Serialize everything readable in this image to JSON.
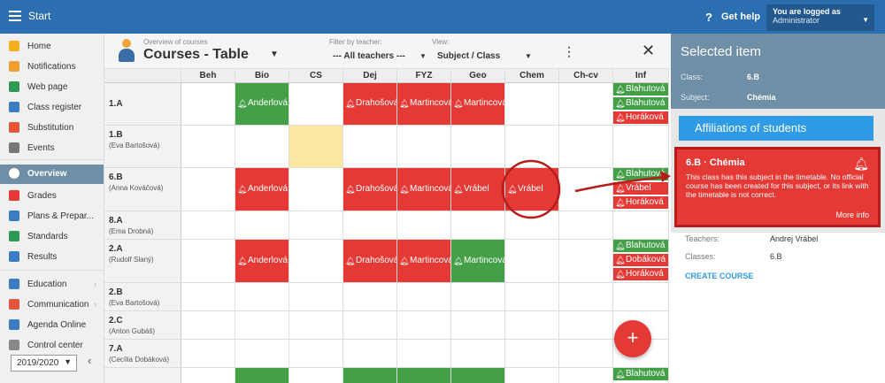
{
  "topbar": {
    "start_label": "Start",
    "help_label": "Get help",
    "help_icon": "?",
    "user_line1": "You are logged as",
    "user_line2": "Administrator"
  },
  "sidebar": {
    "items": [
      {
        "label": "Home",
        "icon": "star-icon",
        "color": "#f2b01e"
      },
      {
        "label": "Notifications",
        "icon": "envelope-icon",
        "color": "#f0a030"
      },
      {
        "label": "Web page",
        "icon": "house-icon",
        "color": "#2e9a55"
      },
      {
        "label": "Class register",
        "icon": "book-icon",
        "color": "#3b7dc4"
      },
      {
        "label": "Substitution",
        "icon": "person-icon",
        "color": "#e2553a"
      },
      {
        "label": "Events",
        "icon": "calendar-icon",
        "color": "#777"
      },
      {
        "label": "Overview",
        "icon": "check-icon",
        "color": "#ffffff"
      },
      {
        "label": "Grades",
        "icon": "grade-icon",
        "color": "#e53935"
      },
      {
        "label": "Plans & Prepar...",
        "icon": "plans-icon",
        "color": "#3b7dc4"
      },
      {
        "label": "Standards",
        "icon": "shield-icon",
        "color": "#2e9a55"
      },
      {
        "label": "Results",
        "icon": "bar-chart-icon",
        "color": "#3b7dc4"
      },
      {
        "label": "Education",
        "icon": "education-icon",
        "color": "#3b7dc4"
      },
      {
        "label": "Communication",
        "icon": "chat-icon",
        "color": "#e2553a"
      },
      {
        "label": "Agenda Online",
        "icon": "pen-icon",
        "color": "#3b7dc4"
      },
      {
        "label": "Control center",
        "icon": "gear-icon",
        "color": "#888"
      }
    ],
    "year": "2019/2020"
  },
  "header": {
    "subtitle": "Overview of courses",
    "title": "Courses - Table",
    "teacher_filter_label": "Filter by teacher:",
    "teacher_filter_value": "--- All teachers ---",
    "view_label": "View:",
    "view_value": "Subject / Class"
  },
  "table": {
    "columns": [
      "Beh",
      "Bio",
      "CS",
      "Dej",
      "FYZ",
      "Geo",
      "Chem",
      "Ch-cv",
      "Inf"
    ],
    "rows": [
      {
        "cls": "1.A",
        "teacher": "",
        "cells": [
          "",
          {
            "c": "green",
            "t": "Anderlová"
          },
          "",
          {
            "c": "red",
            "t": "Drahošová"
          },
          {
            "c": "red",
            "t": "Martincová"
          },
          {
            "c": "red",
            "t": "Martincová"
          },
          "",
          "",
          {
            "c": "stack",
            "items": [
              {
                "c": "green",
                "t": "Blahutová"
              },
              {
                "c": "green",
                "t": "Blahutová"
              },
              {
                "c": "red",
                "t": "Horáková"
              }
            ]
          }
        ]
      },
      {
        "cls": "1.B",
        "teacher": "(Eva Bartošová)",
        "cells": [
          "",
          "",
          {
            "c": "yellow",
            "t": ""
          },
          "",
          "",
          "",
          "",
          "",
          ""
        ]
      },
      {
        "cls": "6.B",
        "teacher": "(Anna Kováčová)",
        "cells": [
          "",
          {
            "c": "red",
            "t": "Anderlová"
          },
          "",
          {
            "c": "red",
            "t": "Drahošová"
          },
          {
            "c": "red",
            "t": "Martincová"
          },
          {
            "c": "red",
            "t": "Vrábel"
          },
          {
            "c": "red",
            "t": "Vrábel"
          },
          "",
          {
            "c": "stack",
            "items": [
              {
                "c": "green",
                "t": "Blahutová"
              },
              {
                "c": "red",
                "t": "Vrábel"
              },
              {
                "c": "red",
                "t": "Horáková"
              }
            ]
          }
        ]
      },
      {
        "cls": "8.A",
        "teacher": "(Ema Drobná)",
        "cells": [
          "",
          "",
          "",
          "",
          "",
          "",
          "",
          "",
          ""
        ]
      },
      {
        "cls": "2.A",
        "teacher": "(Rudolf Slaný)",
        "cells": [
          "",
          {
            "c": "red",
            "t": "Anderlová"
          },
          "",
          {
            "c": "red",
            "t": "Drahošová"
          },
          {
            "c": "red",
            "t": "Martincová"
          },
          {
            "c": "green",
            "t": "Martincová"
          },
          "",
          "",
          {
            "c": "stack",
            "items": [
              {
                "c": "green",
                "t": "Blahutová"
              },
              {
                "c": "red",
                "t": "Dobáková"
              },
              {
                "c": "red",
                "t": "Horáková"
              }
            ]
          }
        ]
      },
      {
        "cls": "2.B",
        "teacher": "(Eva Bartošová)",
        "cells": [
          "",
          "",
          "",
          "",
          "",
          "",
          "",
          "",
          ""
        ]
      },
      {
        "cls": "2.C",
        "teacher": "(Anton Gubáš)",
        "cells": [
          "",
          "",
          "",
          "",
          "",
          "",
          "",
          "",
          ""
        ]
      },
      {
        "cls": "7.A",
        "teacher": "(Cecília Dobáková)",
        "cells": [
          "",
          "",
          "",
          "",
          "",
          "",
          "",
          "",
          ""
        ]
      },
      {
        "cls": "",
        "teacher": "",
        "cells": [
          "",
          {
            "c": "green",
            "t": ""
          },
          "",
          {
            "c": "green",
            "t": ""
          },
          {
            "c": "green",
            "t": ""
          },
          {
            "c": "green",
            "t": ""
          },
          "",
          "",
          {
            "c": "stack",
            "items": [
              {
                "c": "green",
                "t": "Blahutová"
              }
            ]
          }
        ]
      }
    ]
  },
  "panel": {
    "title": "Selected item",
    "class_label": "Class:",
    "class_value": "6.B",
    "subject_label": "Subject:",
    "subject_value": "Chémia",
    "affiliations_button": "Affiliations of students",
    "alert_title": "6.B · Chémia",
    "alert_body": "This class has this subject in the timetable. No official course has been created for this subject, or its link with the timetable is not correct.",
    "alert_more": "More info",
    "teachers_label": "Teachers:",
    "teachers_value": "Andrej Vrábel",
    "classes_label": "Classes:",
    "classes_value": "6.B",
    "create_label": "CREATE COURSE"
  },
  "fab_label": "+",
  "colors": {
    "red": "#e53935",
    "green": "#43a047",
    "yellow": "#fbe7a1",
    "accent": "#2c6fb0"
  }
}
